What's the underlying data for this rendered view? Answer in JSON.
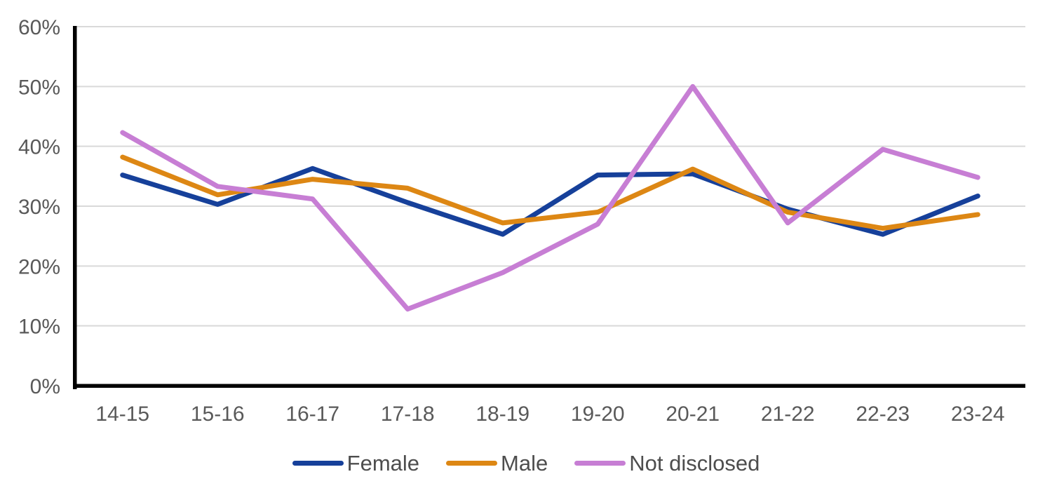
{
  "chart_data": {
    "type": "line",
    "title": "",
    "xlabel": "",
    "ylabel": "",
    "categories": [
      "14-15",
      "15-16",
      "16-17",
      "17-18",
      "18-19",
      "19-20",
      "20-21",
      "21-22",
      "22-23",
      "23-24"
    ],
    "series": [
      {
        "name": "Female",
        "color": "#16409A",
        "values": [
          35.2,
          30.3,
          36.3,
          30.6,
          25.3,
          35.2,
          35.4,
          29.5,
          25.3,
          31.7
        ]
      },
      {
        "name": "Male",
        "color": "#DD8714",
        "values": [
          38.2,
          31.9,
          34.5,
          33.0,
          27.2,
          29.0,
          36.2,
          29.0,
          26.3,
          28.6
        ]
      },
      {
        "name": "Not disclosed",
        "color": "#C77ED4",
        "values": [
          42.3,
          33.3,
          31.2,
          12.8,
          18.9,
          27.0,
          50.0,
          27.2,
          39.5,
          34.8
        ]
      }
    ],
    "ylim": [
      0,
      60
    ],
    "yticks": [
      {
        "value": 0,
        "label": "0%"
      },
      {
        "value": 10,
        "label": "10%"
      },
      {
        "value": 20,
        "label": "20%"
      },
      {
        "value": 30,
        "label": "30%"
      },
      {
        "value": 40,
        "label": "40%"
      },
      {
        "value": 50,
        "label": "50%"
      },
      {
        "value": 60,
        "label": "60%"
      }
    ],
    "grid": true,
    "legend_position": "bottom",
    "line_width": 7,
    "colors": {
      "gridline": "#D9D9D9",
      "axis": "#000000",
      "tick_text": "#595959",
      "legend_text": "#4d4d4d",
      "background": "#ffffff"
    }
  }
}
